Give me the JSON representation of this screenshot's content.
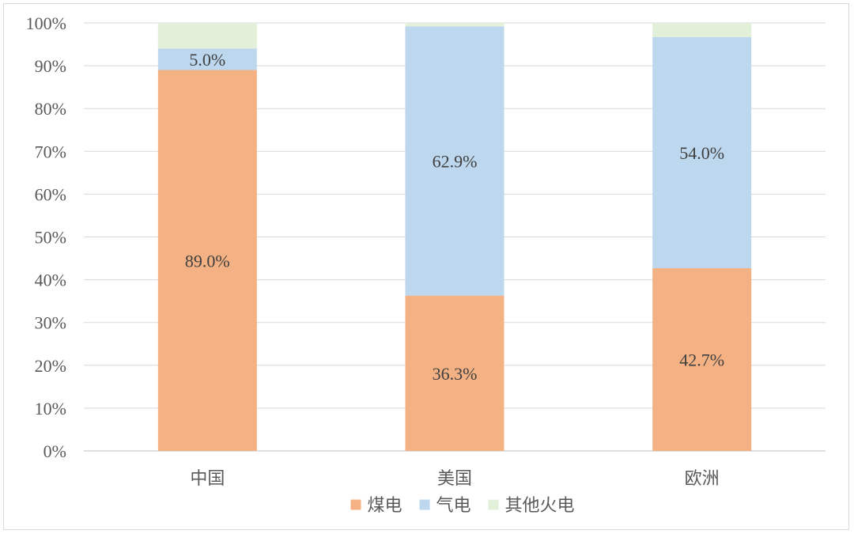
{
  "chart_data": {
    "type": "bar",
    "stacked": true,
    "percent_stacked": true,
    "categories": [
      "中国",
      "美国",
      "欧洲"
    ],
    "series": [
      {
        "name": "煤电",
        "color": "#f4b183",
        "values": [
          89.0,
          36.3,
          42.7
        ],
        "labels": [
          "89.0%",
          "36.3%",
          "42.7%"
        ]
      },
      {
        "name": "气电",
        "color": "#bdd7ee",
        "values": [
          5.0,
          62.9,
          54.0
        ],
        "labels": [
          "5.0%",
          "62.9%",
          "54.0%"
        ]
      },
      {
        "name": "其他火电",
        "color": "#e2f0d9",
        "values": [
          6.0,
          0.8,
          3.3
        ],
        "labels": [
          "",
          "",
          ""
        ]
      }
    ],
    "ylim": [
      0,
      100
    ],
    "yticks": [
      0,
      10,
      20,
      30,
      40,
      50,
      60,
      70,
      80,
      90,
      100
    ],
    "ytick_labels": [
      "0%",
      "10%",
      "20%",
      "30%",
      "40%",
      "50%",
      "60%",
      "70%",
      "80%",
      "90%",
      "100%"
    ],
    "grid": true,
    "legend_position": "bottom",
    "title": "",
    "xlabel": "",
    "ylabel": ""
  }
}
